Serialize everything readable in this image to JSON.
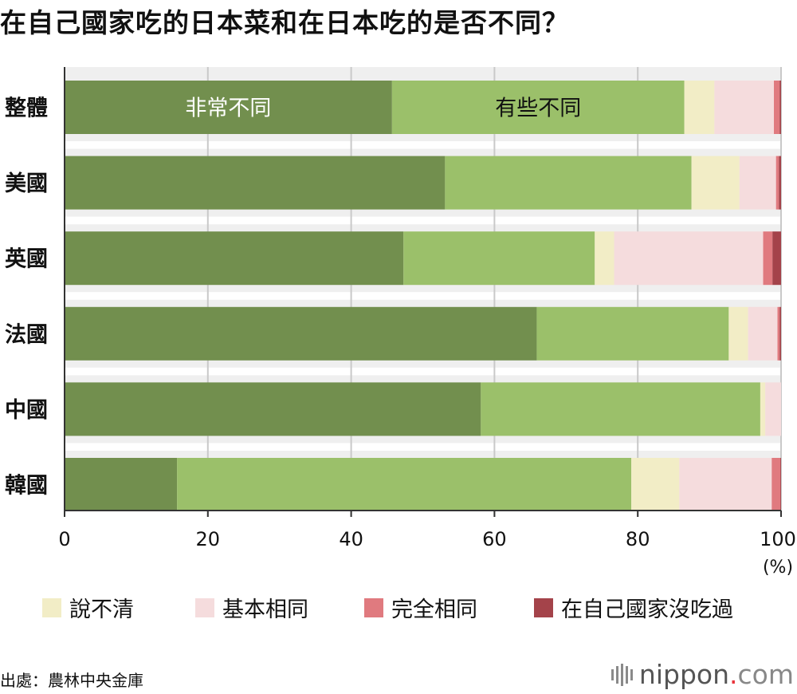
{
  "title": "在自己國家吃的日本菜和在日本吃的是否不同？",
  "chart_data": {
    "type": "bar",
    "orientation": "horizontal",
    "stacked": true,
    "categories": [
      "整體",
      "美國",
      "英國",
      "法國",
      "中國",
      "韓國"
    ],
    "series": [
      {
        "name": "非常不同",
        "color": "#728f4e",
        "values": [
          45.7,
          53.1,
          47.3,
          65.9,
          58.1,
          15.7
        ]
      },
      {
        "name": "有些不同",
        "color": "#9bc06a",
        "values": [
          40.8,
          34.4,
          26.7,
          26.8,
          39.0,
          63.4
        ]
      },
      {
        "name": "說不清",
        "color": "#f2edc6",
        "values": [
          4.2,
          6.7,
          2.7,
          2.7,
          0.7,
          6.7
        ]
      },
      {
        "name": "基本相同",
        "color": "#f5dcdd",
        "values": [
          8.3,
          5.1,
          20.8,
          4.1,
          2.2,
          12.9
        ]
      },
      {
        "name": "完全相同",
        "color": "#e07a7f",
        "values": [
          0.8,
          0.4,
          1.3,
          0.3,
          0.0,
          1.2
        ]
      },
      {
        "name": "在自己國家沒吃過",
        "color": "#a4434a",
        "values": [
          0.2,
          0.3,
          1.2,
          0.2,
          0.0,
          0.1
        ]
      }
    ],
    "inline_labels": [
      "非常不同",
      "有些不同"
    ],
    "xticks": [
      "0",
      "20",
      "40",
      "60",
      "80",
      "100"
    ],
    "xlim": [
      0,
      100
    ],
    "xunit": "(%)",
    "grid": true,
    "legend": {
      "position": "bottom",
      "entries": [
        "說不清",
        "基本相同",
        "完全相同",
        "在自己國家沒吃過"
      ]
    }
  },
  "source": "出處：農林中央金庫",
  "logo": {
    "main": "nippon",
    "dot": ".",
    "tail": "com"
  }
}
